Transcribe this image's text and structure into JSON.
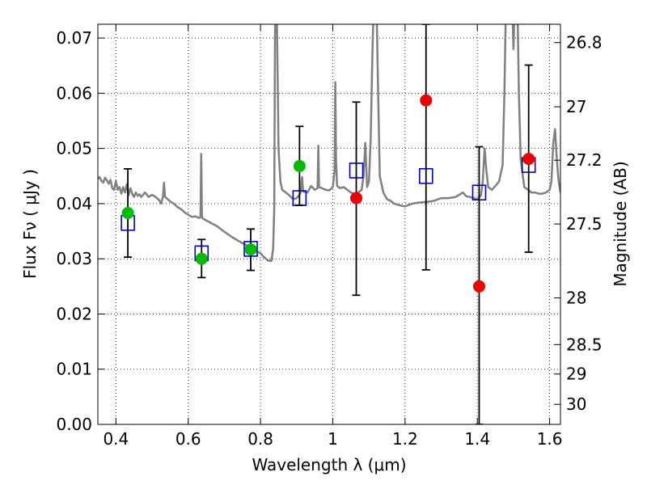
{
  "chart_data": {
    "type": "scatter",
    "xlabel": "Wavelength  λ (μm)",
    "ylabel": "Flux  Fν  ( μJy )",
    "y2label": "Magnitude (AB)",
    "xlim": [
      0.35,
      1.63
    ],
    "ylim": [
      0.0,
      0.0725
    ],
    "grid": true,
    "x_ticks": [
      {
        "value": 0.4,
        "label": "0.4"
      },
      {
        "value": 0.6,
        "label": "0.6"
      },
      {
        "value": 0.8,
        "label": "0.8"
      },
      {
        "value": 1.0,
        "label": "1"
      },
      {
        "value": 1.2,
        "label": "1.2"
      },
      {
        "value": 1.4,
        "label": "1.4"
      },
      {
        "value": 1.6,
        "label": "1.6"
      }
    ],
    "y_ticks": [
      {
        "value": 0.0,
        "label": "0.00"
      },
      {
        "value": 0.01,
        "label": "0.01"
      },
      {
        "value": 0.02,
        "label": "0.02"
      },
      {
        "value": 0.03,
        "label": "0.03"
      },
      {
        "value": 0.04,
        "label": "0.04"
      },
      {
        "value": 0.05,
        "label": "0.05"
      },
      {
        "value": 0.06,
        "label": "0.06"
      },
      {
        "value": 0.07,
        "label": "0.07"
      }
    ],
    "y2_ticks": [
      {
        "value": 26.8,
        "label": "26.8"
      },
      {
        "value": 27.0,
        "label": "27"
      },
      {
        "value": 27.2,
        "label": "27.2"
      },
      {
        "value": 27.5,
        "label": "27.5"
      },
      {
        "value": 28.0,
        "label": "28"
      },
      {
        "value": 28.5,
        "label": "28.5"
      },
      {
        "value": 29.0,
        "label": "29"
      },
      {
        "value": 30.0,
        "label": "30"
      }
    ],
    "colors": {
      "model": "#808080",
      "model_points": "#0000cc",
      "detections": "#00bb00",
      "upper": "#ee0000",
      "errorbar": "#000000"
    },
    "series": [
      {
        "kind": "line",
        "points": [
          [
            0.35,
            0.0445
          ],
          [
            0.355,
            0.0448
          ],
          [
            0.36,
            0.0441
          ],
          [
            0.365,
            0.0438
          ],
          [
            0.37,
            0.0447
          ],
          [
            0.375,
            0.0442
          ],
          [
            0.38,
            0.0436
          ],
          [
            0.385,
            0.0443
          ],
          [
            0.39,
            0.0428
          ],
          [
            0.395,
            0.0425
          ],
          [
            0.4,
            0.0441
          ],
          [
            0.405,
            0.0425
          ],
          [
            0.41,
            0.043
          ],
          [
            0.415,
            0.0418
          ],
          [
            0.42,
            0.043
          ],
          [
            0.425,
            0.042
          ],
          [
            0.43,
            0.0435
          ],
          [
            0.435,
            0.0415
          ],
          [
            0.44,
            0.0428
          ],
          [
            0.445,
            0.0418
          ],
          [
            0.45,
            0.0412
          ],
          [
            0.455,
            0.042
          ],
          [
            0.46,
            0.0414
          ],
          [
            0.465,
            0.0417
          ],
          [
            0.47,
            0.0412
          ],
          [
            0.475,
            0.0416
          ],
          [
            0.48,
            0.042
          ],
          [
            0.485,
            0.0417
          ],
          [
            0.49,
            0.0412
          ],
          [
            0.5,
            0.0416
          ],
          [
            0.51,
            0.0412
          ],
          [
            0.52,
            0.0406
          ],
          [
            0.525,
            0.04
          ],
          [
            0.53,
            0.0412
          ],
          [
            0.533,
            0.0438
          ],
          [
            0.536,
            0.0412
          ],
          [
            0.54,
            0.041
          ],
          [
            0.55,
            0.0404
          ],
          [
            0.56,
            0.04
          ],
          [
            0.57,
            0.0394
          ],
          [
            0.58,
            0.039
          ],
          [
            0.59,
            0.0384
          ],
          [
            0.6,
            0.038
          ],
          [
            0.61,
            0.0376
          ],
          [
            0.62,
            0.0377
          ],
          [
            0.63,
            0.0374
          ],
          [
            0.634,
            0.0375
          ],
          [
            0.636,
            0.049
          ],
          [
            0.638,
            0.0378
          ],
          [
            0.64,
            0.0373
          ],
          [
            0.66,
            0.0366
          ],
          [
            0.68,
            0.0359
          ],
          [
            0.7,
            0.0349
          ],
          [
            0.72,
            0.034
          ],
          [
            0.74,
            0.0332
          ],
          [
            0.76,
            0.0325
          ],
          [
            0.78,
            0.0316
          ],
          [
            0.8,
            0.031
          ],
          [
            0.81,
            0.0303
          ],
          [
            0.82,
            0.0297
          ],
          [
            0.83,
            0.0296
          ],
          [
            0.835,
            0.0318
          ],
          [
            0.838,
            0.039
          ],
          [
            0.84,
            0.07
          ],
          [
            0.842,
            0.08
          ],
          [
            0.844,
            0.08
          ],
          [
            0.846,
            0.07
          ],
          [
            0.85,
            0.05
          ],
          [
            0.855,
            0.044
          ],
          [
            0.86,
            0.0425
          ],
          [
            0.87,
            0.042
          ],
          [
            0.88,
            0.0415
          ],
          [
            0.89,
            0.0408
          ],
          [
            0.9,
            0.041
          ],
          [
            0.91,
            0.0418
          ],
          [
            0.915,
            0.0448
          ],
          [
            0.918,
            0.0422
          ],
          [
            0.93,
            0.042
          ],
          [
            0.94,
            0.0432
          ],
          [
            0.95,
            0.0425
          ],
          [
            0.958,
            0.0428
          ],
          [
            0.96,
            0.0505
          ],
          [
            0.962,
            0.043
          ],
          [
            0.97,
            0.0428
          ],
          [
            0.98,
            0.0425
          ],
          [
            0.99,
            0.0424
          ],
          [
            1.0,
            0.043
          ],
          [
            1.005,
            0.046
          ],
          [
            1.007,
            0.062
          ],
          [
            1.009,
            0.048
          ],
          [
            1.012,
            0.0432
          ],
          [
            1.02,
            0.0428
          ],
          [
            1.03,
            0.043
          ],
          [
            1.04,
            0.0425
          ],
          [
            1.05,
            0.042
          ],
          [
            1.06,
            0.0418
          ],
          [
            1.07,
            0.042
          ],
          [
            1.08,
            0.0425
          ],
          [
            1.085,
            0.045
          ],
          [
            1.09,
            0.051
          ],
          [
            1.095,
            0.043
          ],
          [
            1.1,
            0.044
          ],
          [
            1.105,
            0.052
          ],
          [
            1.11,
            0.068
          ],
          [
            1.115,
            0.08
          ],
          [
            1.12,
            0.08
          ],
          [
            1.125,
            0.062
          ],
          [
            1.13,
            0.045
          ],
          [
            1.14,
            0.042
          ],
          [
            1.15,
            0.0408
          ],
          [
            1.16,
            0.0405
          ],
          [
            1.17,
            0.04
          ],
          [
            1.18,
            0.0398
          ],
          [
            1.19,
            0.0396
          ],
          [
            1.2,
            0.0395
          ],
          [
            1.22,
            0.04
          ],
          [
            1.24,
            0.0402
          ],
          [
            1.26,
            0.0403
          ],
          [
            1.28,
            0.0405
          ],
          [
            1.3,
            0.041
          ],
          [
            1.32,
            0.041
          ],
          [
            1.34,
            0.0412
          ],
          [
            1.36,
            0.042
          ],
          [
            1.37,
            0.0413
          ],
          [
            1.38,
            0.0412
          ],
          [
            1.39,
            0.041
          ],
          [
            1.4,
            0.0408
          ],
          [
            1.41,
            0.0415
          ],
          [
            1.415,
            0.044
          ],
          [
            1.42,
            0.05
          ],
          [
            1.425,
            0.046
          ],
          [
            1.43,
            0.043
          ],
          [
            1.44,
            0.0425
          ],
          [
            1.45,
            0.0432
          ],
          [
            1.46,
            0.044
          ],
          [
            1.47,
            0.047
          ],
          [
            1.475,
            0.06
          ],
          [
            1.48,
            0.08
          ],
          [
            1.49,
            0.08
          ],
          [
            1.495,
            0.08
          ],
          [
            1.5,
            0.068
          ],
          [
            1.505,
            0.08
          ],
          [
            1.51,
            0.08
          ],
          [
            1.515,
            0.06
          ],
          [
            1.52,
            0.048
          ],
          [
            1.53,
            0.043
          ],
          [
            1.54,
            0.0425
          ],
          [
            1.55,
            0.042
          ],
          [
            1.56,
            0.042
          ],
          [
            1.57,
            0.0418
          ],
          [
            1.58,
            0.0418
          ],
          [
            1.59,
            0.042
          ],
          [
            1.6,
            0.0425
          ],
          [
            1.605,
            0.044
          ],
          [
            1.61,
            0.051
          ],
          [
            1.615,
            0.0535
          ],
          [
            1.62,
            0.048
          ],
          [
            1.625,
            0.044
          ],
          [
            1.63,
            0.042
          ]
        ]
      },
      {
        "kind": "model_points",
        "marker": "open-square",
        "x": [
          0.433,
          0.637,
          0.773,
          0.908,
          1.065,
          1.258,
          1.405,
          1.542
        ],
        "y": [
          0.0365,
          0.031,
          0.0318,
          0.041,
          0.046,
          0.045,
          0.042,
          0.047
        ]
      },
      {
        "kind": "detections",
        "marker": "filled-circle",
        "x": [
          0.433,
          0.637,
          0.773,
          0.908
        ],
        "y": [
          0.0383,
          0.03,
          0.0317,
          0.0468
        ],
        "yerr_low": [
          0.0303,
          0.0266,
          0.0279,
          0.0397
        ],
        "yerr_high": [
          0.0463,
          0.0335,
          0.0354,
          0.054
        ]
      },
      {
        "kind": "upper",
        "marker": "filled-circle",
        "x": [
          1.065,
          1.258,
          1.405,
          1.542
        ],
        "y": [
          0.041,
          0.0587,
          0.025,
          0.0481
        ],
        "yerr_low": [
          0.0234,
          0.028,
          0.0,
          0.0312
        ],
        "yerr_high": [
          0.0584,
          0.0725,
          0.0503,
          0.0651
        ]
      }
    ]
  }
}
